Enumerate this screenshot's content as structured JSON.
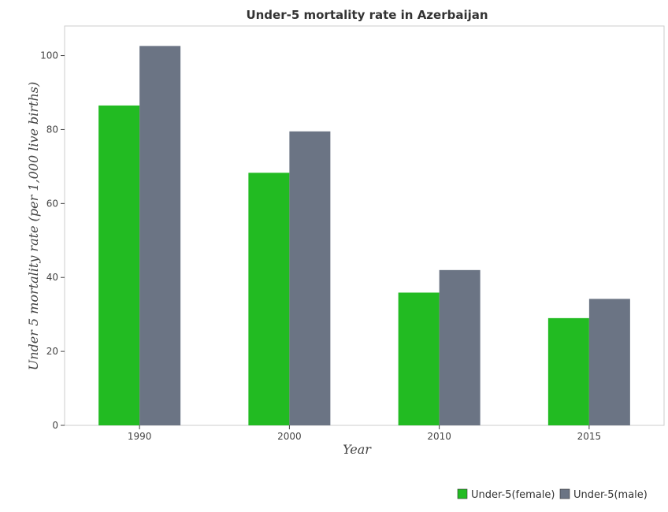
{
  "chart_data": {
    "type": "bar",
    "title": "Under-5 mortality rate in Azerbaijan",
    "xlabel": "Year",
    "ylabel": "Under 5 mortality rate (per 1,000 live births)",
    "categories": [
      "1990",
      "2000",
      "2010",
      "2015"
    ],
    "series": [
      {
        "name": "Under-5(female)",
        "color": "#22bb22",
        "values": [
          86.5,
          68.3,
          35.9,
          29.0
        ]
      },
      {
        "name": "Under-5(male)",
        "color": "#6b7484",
        "values": [
          102.6,
          79.5,
          42.0,
          34.2
        ]
      }
    ],
    "ylim": [
      0,
      108
    ],
    "yticks": [
      0,
      20,
      40,
      60,
      80,
      100
    ],
    "grid": false,
    "legend_position": "bottom-right"
  }
}
